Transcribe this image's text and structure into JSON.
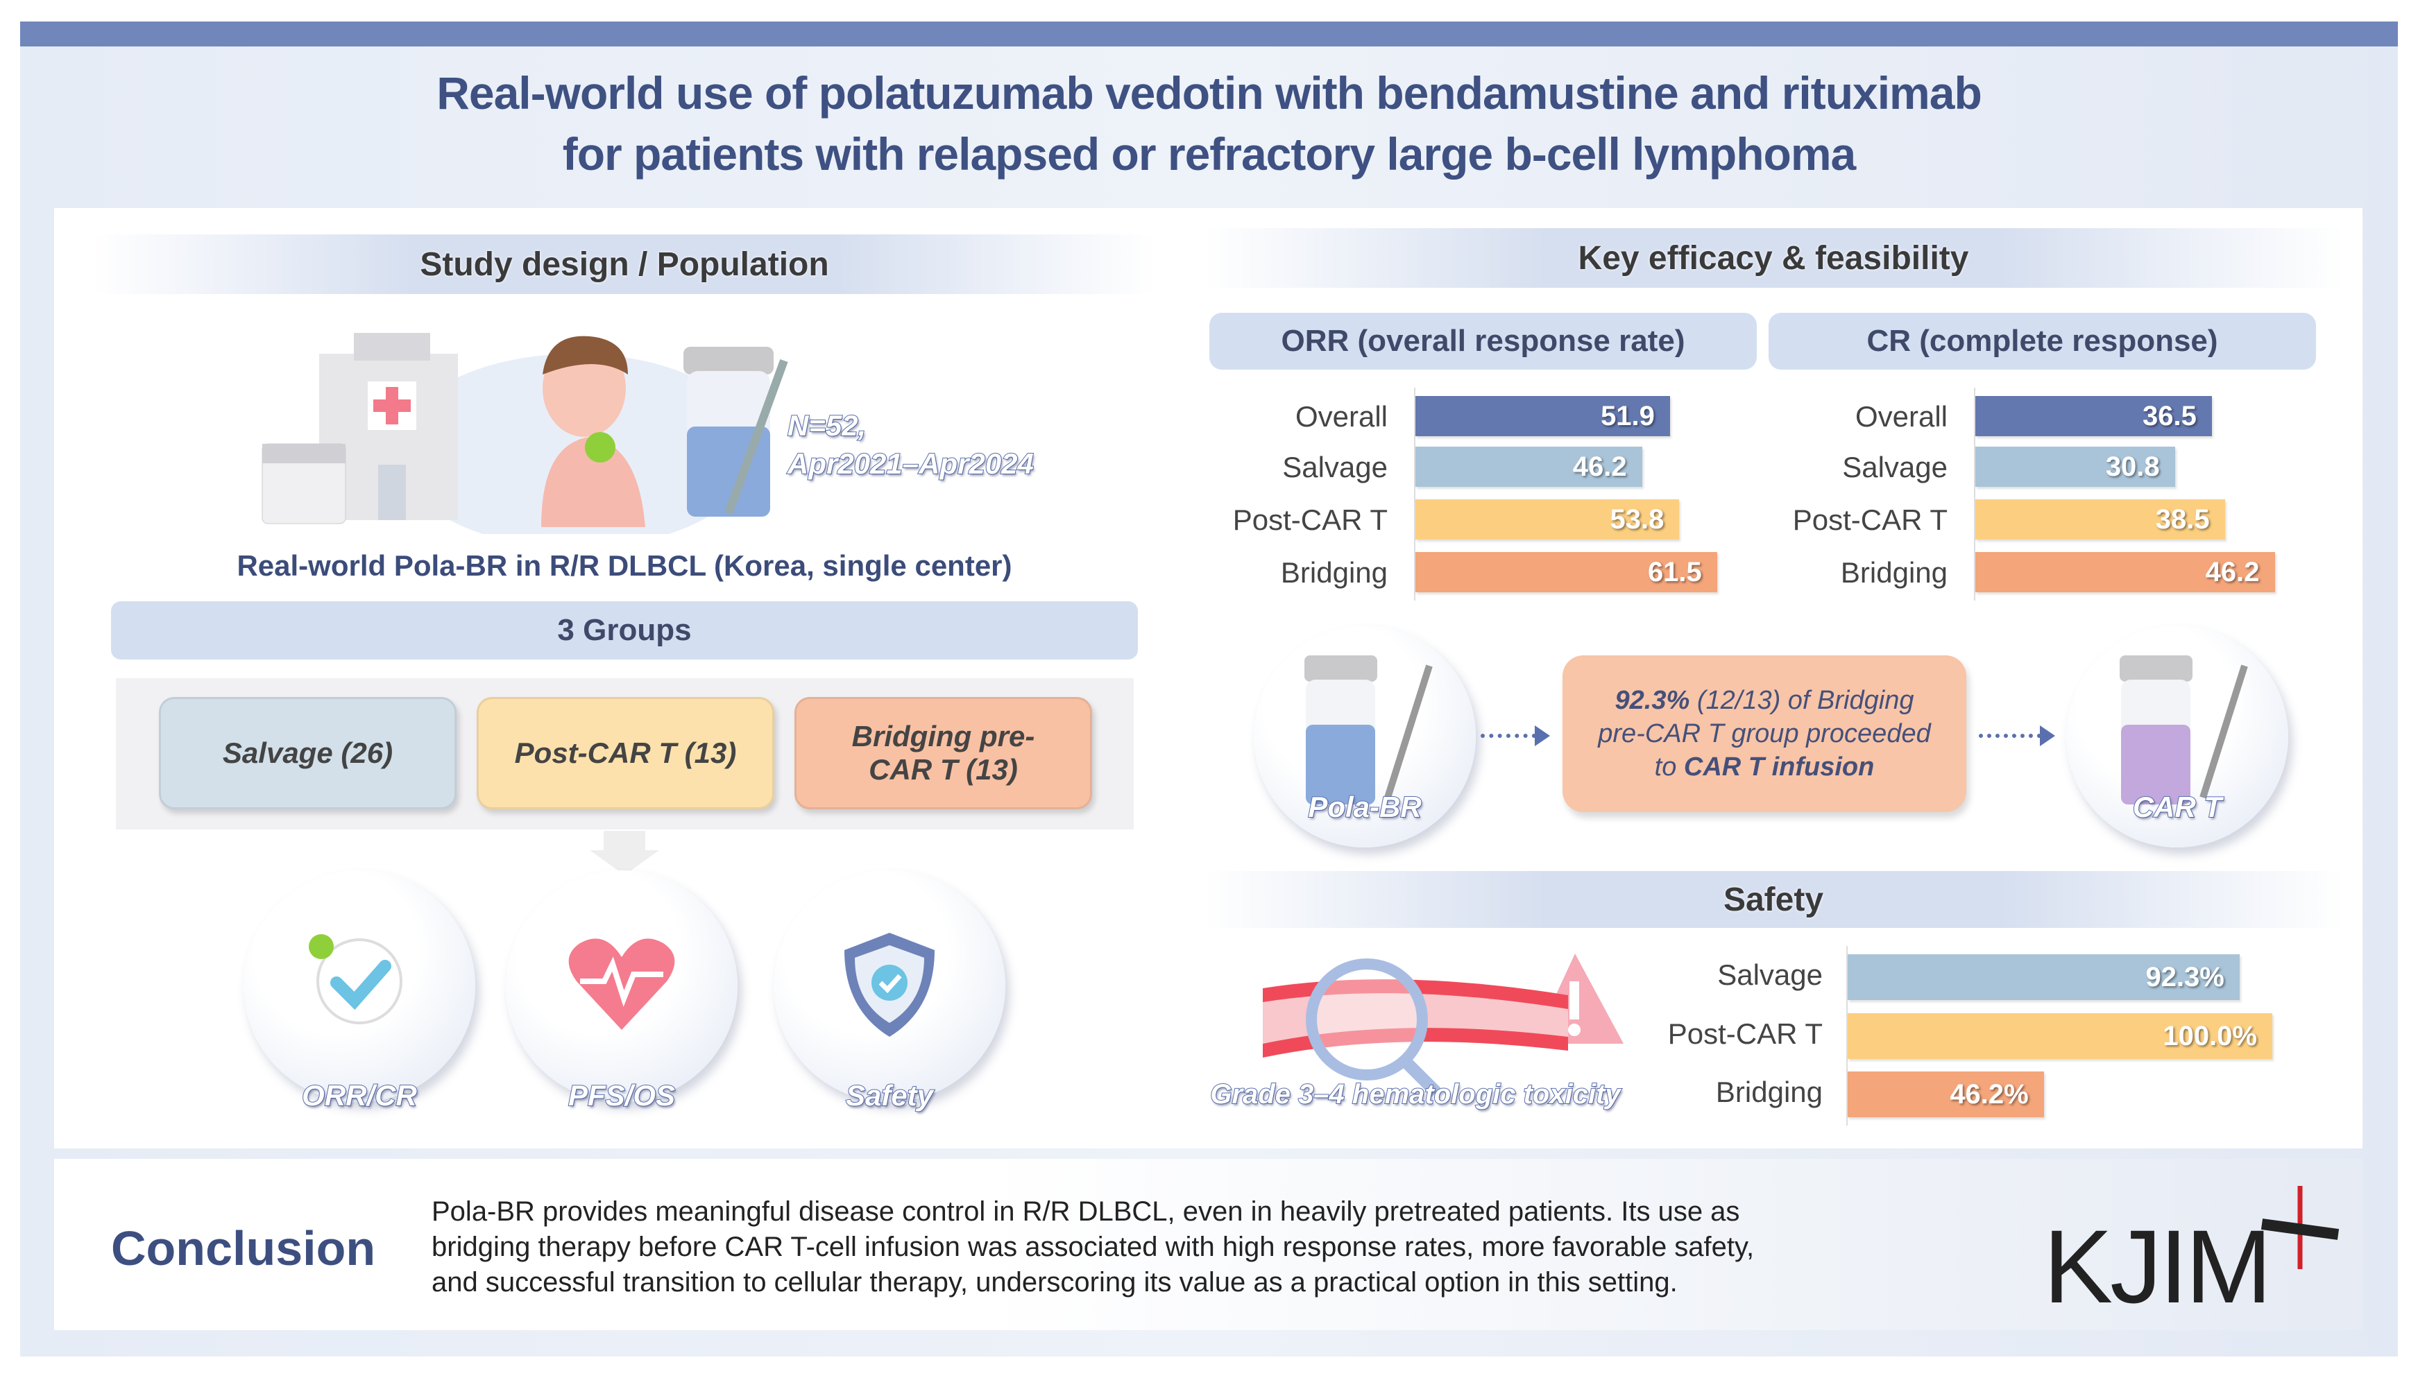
{
  "title": {
    "line1": "Real-world use of polatuzumab vedotin with bendamustine and rituximab",
    "line2": "for patients with relapsed or refractory large b-cell lymphoma"
  },
  "study": {
    "header": "Study design / Population",
    "n": "N=52,",
    "period": "Apr2021–Apr2024",
    "caption": "Real-world Pola-BR in R/R DLBCL (Korea, single center)",
    "groups_header": "3 Groups",
    "groups": [
      {
        "label": "Salvage (26)",
        "color": "#d3e0ea"
      },
      {
        "label": "Post-CAR T (13)",
        "color": "#fde1ad"
      },
      {
        "label": "Bridging pre-CAR T (13)",
        "color": "#f8c1a3"
      }
    ],
    "endpoints": [
      {
        "label": "ORR/CR",
        "icon": "check-icon"
      },
      {
        "label": "PFS/OS",
        "icon": "heart-pulse-icon"
      },
      {
        "label": "Safety",
        "icon": "shield-check-icon"
      }
    ]
  },
  "efficacy": {
    "header": "Key efficacy & feasibility",
    "flow": {
      "left": "Pola-BR",
      "right": "CAR T",
      "text_bold1": "92.3%",
      "text1": " (12/13) of Bridging",
      "text2": "pre-CAR T group proceeded",
      "text3a": "to ",
      "text_bold2": "CAR T infusion"
    }
  },
  "safety": {
    "header": "Safety",
    "illustration_label": "Grade 3–4 hematologic toxicity"
  },
  "conclusion": {
    "label": "Conclusion",
    "lines": [
      "Pola-BR provides meaningful disease control in R/R DLBCL, even in heavily pretreated patients. Its use as",
      "bridging therapy before CAR T-cell infusion was associated with high response rates, more favorable safety,",
      "and successful transition to cellular therapy, underscoring its value as a practical option in this setting."
    ],
    "logo": "KJIM"
  },
  "colors": {
    "Overall": "#6478b0",
    "Salvage": "#a9c4d8",
    "Post-CAR T": "#fccf80",
    "Bridging": "#f4a57a"
  },
  "chart_data": [
    {
      "type": "bar",
      "title": "ORR (overall response rate)",
      "categories": [
        "Overall",
        "Salvage",
        "Post-CAR T",
        "Bridging"
      ],
      "values": [
        51.9,
        46.2,
        53.8,
        61.5
      ],
      "labels": [
        "51.9",
        "46.2",
        "53.8",
        "61.5"
      ],
      "orientation": "horizontal"
    },
    {
      "type": "bar",
      "title": "CR (complete response)",
      "categories": [
        "Overall",
        "Salvage",
        "Post-CAR T",
        "Bridging"
      ],
      "values": [
        36.5,
        30.8,
        38.5,
        46.2
      ],
      "labels": [
        "36.5",
        "30.8",
        "38.5",
        "46.2"
      ],
      "orientation": "horizontal"
    },
    {
      "type": "bar",
      "title": "Safety",
      "categories": [
        "Salvage",
        "Post-CAR T",
        "Bridging"
      ],
      "values": [
        92.3,
        100.0,
        46.2
      ],
      "labels": [
        "92.3%",
        "100.0%",
        "46.2%"
      ],
      "orientation": "horizontal"
    }
  ]
}
